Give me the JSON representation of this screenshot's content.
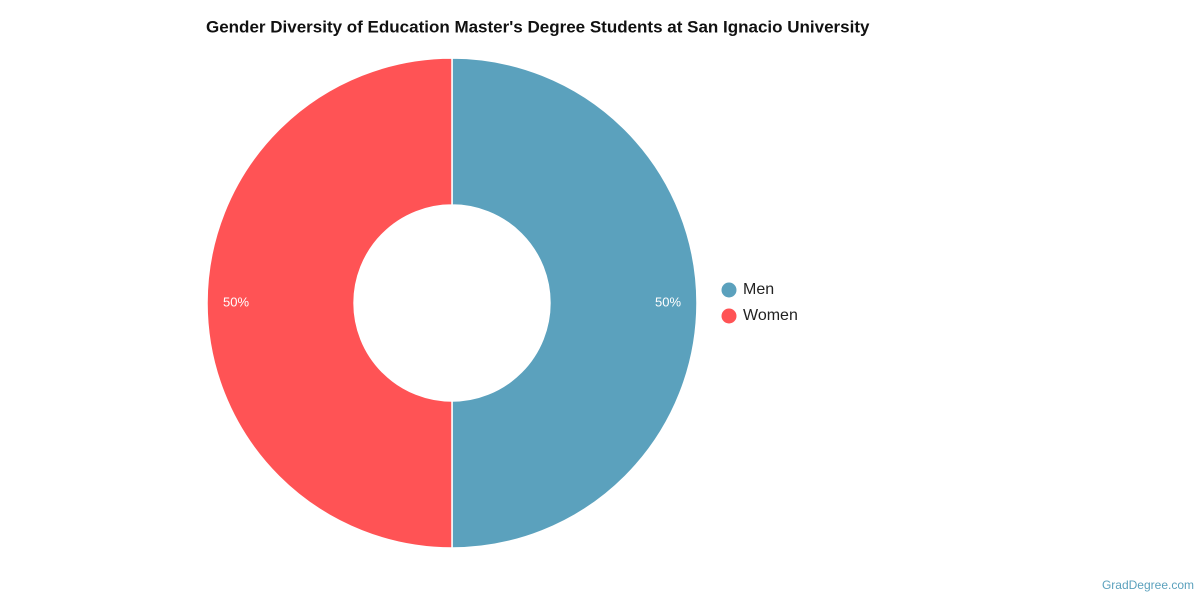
{
  "chart_data": {
    "type": "donut",
    "title": "Gender Diversity of Education Master's Degree Students at San Ignacio University",
    "categories": [
      "Men",
      "Women"
    ],
    "values": [
      50,
      50
    ],
    "value_labels": [
      "50%",
      "50%"
    ],
    "colors": [
      "#5ba1bd",
      "#ff5355"
    ],
    "legend": "right",
    "credit": "GradDegree.com"
  }
}
